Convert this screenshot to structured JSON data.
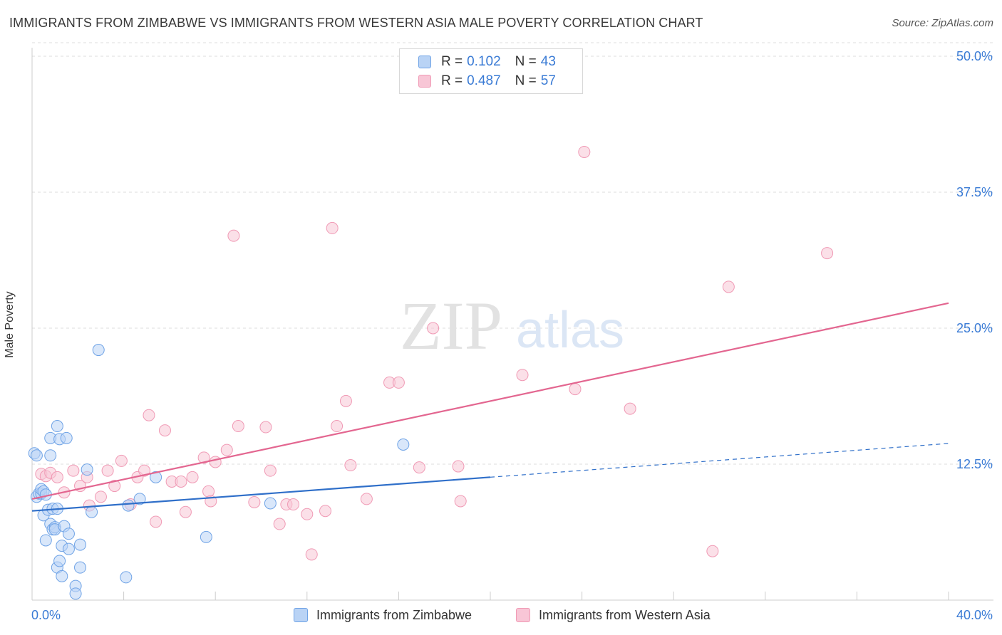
{
  "title": "IMMIGRANTS FROM ZIMBABWE VS IMMIGRANTS FROM WESTERN ASIA MALE POVERTY CORRELATION CHART",
  "source": "Source: ZipAtlas.com",
  "watermark": {
    "zip": "ZIP",
    "atlas": "atlas"
  },
  "colors": {
    "blue": "#6fa3e6",
    "blue_fill": "#b9d3f5",
    "blue_line": "#2f6fc9",
    "pink": "#f09ab5",
    "pink_fill": "#f8c6d6",
    "pink_line": "#e36690",
    "axis_text": "#3a7bd5"
  },
  "legend": {
    "rows": [
      {
        "r_label": "R =",
        "r_value": "0.102",
        "n_label": "N =",
        "n_value": "43"
      },
      {
        "r_label": "R =",
        "r_value": "0.487",
        "n_label": "N =",
        "n_value": "57"
      }
    ]
  },
  "bottom_legend": [
    {
      "label": "Immigrants from Zimbabwe"
    },
    {
      "label": "Immigrants from Western Asia"
    }
  ],
  "chart_data": {
    "type": "scatter",
    "xlabel": "",
    "ylabel": "Male Poverty",
    "xlim": [
      0,
      40
    ],
    "ylim": [
      0,
      50
    ],
    "x_tick_labels": {
      "left": "0.0%",
      "right": "40.0%"
    },
    "y_ticks": [
      {
        "value": 50,
        "label": "50.0%"
      },
      {
        "value": 37.5,
        "label": "37.5%"
      },
      {
        "value": 25,
        "label": "25.0%"
      },
      {
        "value": 12.5,
        "label": "12.5%"
      }
    ],
    "series": [
      {
        "name": "Immigrants from Zimbabwe",
        "trend": {
          "x0": 0,
          "y0": 8.2,
          "x1": 20,
          "y1": 11.3,
          "dash_x1": 40,
          "dash_y1": 14.4
        },
        "points": [
          [
            0.1,
            13.5
          ],
          [
            0.2,
            9.5
          ],
          [
            0.3,
            9.8
          ],
          [
            0.4,
            9.8
          ],
          [
            0.4,
            10.2
          ],
          [
            0.5,
            10.0
          ],
          [
            0.6,
            9.7
          ],
          [
            0.8,
            13.3
          ],
          [
            0.5,
            7.8
          ],
          [
            0.7,
            8.3
          ],
          [
            0.9,
            8.4
          ],
          [
            1.1,
            8.4
          ],
          [
            0.8,
            7.0
          ],
          [
            0.9,
            6.5
          ],
          [
            1.0,
            6.7
          ],
          [
            1.0,
            6.5
          ],
          [
            1.4,
            6.8
          ],
          [
            0.6,
            5.5
          ],
          [
            1.3,
            5.0
          ],
          [
            1.6,
            4.7
          ],
          [
            1.1,
            3.0
          ],
          [
            1.2,
            3.6
          ],
          [
            2.1,
            5.1
          ],
          [
            2.1,
            3.0
          ],
          [
            1.3,
            2.2
          ],
          [
            1.9,
            1.3
          ],
          [
            1.9,
            0.6
          ],
          [
            4.1,
            2.1
          ],
          [
            0.8,
            14.9
          ],
          [
            1.1,
            16.0
          ],
          [
            1.2,
            14.8
          ],
          [
            1.5,
            14.9
          ],
          [
            2.4,
            12.0
          ],
          [
            2.6,
            8.1
          ],
          [
            1.6,
            6.1
          ],
          [
            2.9,
            23.0
          ],
          [
            4.2,
            8.7
          ],
          [
            4.7,
            9.3
          ],
          [
            5.4,
            11.3
          ],
          [
            7.6,
            5.8
          ],
          [
            10.4,
            8.9
          ],
          [
            16.2,
            14.3
          ],
          [
            0.2,
            13.3
          ]
        ]
      },
      {
        "name": "Immigrants from Western Asia",
        "trend": {
          "x0": 0,
          "y0": 9.3,
          "x1": 40,
          "y1": 27.3
        },
        "points": [
          [
            0.4,
            11.6
          ],
          [
            0.6,
            11.4
          ],
          [
            0.8,
            11.7
          ],
          [
            1.1,
            11.3
          ],
          [
            1.4,
            9.9
          ],
          [
            1.8,
            11.9
          ],
          [
            2.1,
            10.5
          ],
          [
            2.4,
            11.3
          ],
          [
            2.5,
            8.7
          ],
          [
            3.0,
            9.5
          ],
          [
            3.3,
            11.9
          ],
          [
            3.6,
            10.5
          ],
          [
            3.9,
            12.8
          ],
          [
            4.3,
            8.8
          ],
          [
            4.6,
            11.3
          ],
          [
            4.9,
            11.9
          ],
          [
            5.1,
            17.0
          ],
          [
            5.4,
            7.2
          ],
          [
            5.8,
            15.6
          ],
          [
            6.1,
            10.9
          ],
          [
            6.5,
            10.9
          ],
          [
            6.7,
            8.1
          ],
          [
            7.0,
            11.3
          ],
          [
            7.5,
            13.1
          ],
          [
            7.7,
            10.0
          ],
          [
            7.8,
            9.1
          ],
          [
            8.0,
            12.7
          ],
          [
            8.5,
            13.8
          ],
          [
            8.8,
            33.5
          ],
          [
            9.0,
            16.0
          ],
          [
            9.7,
            9.0
          ],
          [
            10.2,
            15.9
          ],
          [
            10.4,
            11.9
          ],
          [
            10.8,
            7.0
          ],
          [
            11.1,
            8.8
          ],
          [
            11.4,
            8.8
          ],
          [
            12.0,
            7.9
          ],
          [
            12.2,
            4.2
          ],
          [
            12.8,
            8.2
          ],
          [
            13.1,
            34.2
          ],
          [
            13.3,
            16.0
          ],
          [
            13.7,
            18.3
          ],
          [
            13.9,
            12.4
          ],
          [
            14.6,
            9.3
          ],
          [
            15.6,
            20.0
          ],
          [
            16.0,
            20.0
          ],
          [
            16.9,
            12.2
          ],
          [
            17.5,
            25.0
          ],
          [
            18.6,
            12.3
          ],
          [
            18.7,
            9.1
          ],
          [
            21.4,
            20.7
          ],
          [
            23.7,
            19.4
          ],
          [
            24.1,
            41.2
          ],
          [
            26.1,
            17.6
          ],
          [
            29.7,
            4.5
          ],
          [
            30.4,
            28.8
          ],
          [
            34.7,
            31.9
          ]
        ]
      }
    ]
  }
}
